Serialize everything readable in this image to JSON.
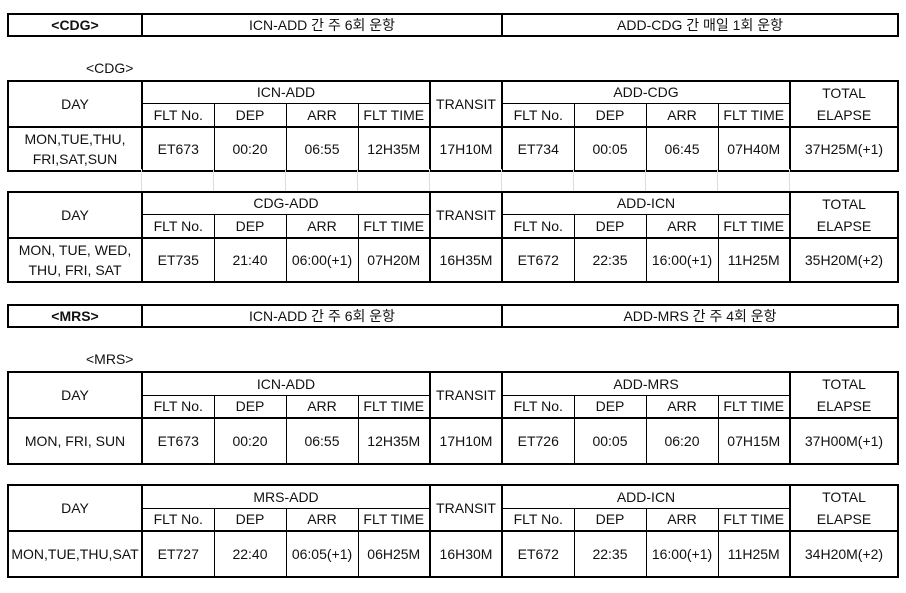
{
  "sections": [
    {
      "title": "<CDG>",
      "out_note": "ICN-ADD 간 주 6회 운항",
      "in_note": "ADD-CDG 간 매일 1회 운항",
      "label": "<CDG>",
      "tables": [
        {
          "day_header": "DAY",
          "leg1": "ICN-ADD",
          "transit_header": "TRANSIT",
          "leg2": "ADD-CDG",
          "total_header": [
            "TOTAL",
            "ELAPSE"
          ],
          "sub": [
            "FLT No.",
            "DEP",
            "ARR",
            "FLT TIME"
          ],
          "row": {
            "day": [
              "MON,TUE,THU,",
              "FRI,SAT,SUN"
            ],
            "leg1": [
              "ET673",
              "00:20",
              "06:55",
              "12H35M"
            ],
            "transit": "17H10M",
            "leg2": [
              "ET734",
              "00:05",
              "06:45",
              "07H40M"
            ],
            "total": "37H25M(+1)"
          }
        },
        {
          "day_header": "DAY",
          "leg1": "CDG-ADD",
          "transit_header": "TRANSIT",
          "leg2": "ADD-ICN",
          "total_header": [
            "TOTAL",
            "ELAPSE"
          ],
          "sub": [
            "FLT No.",
            "DEP",
            "ARR",
            "FLT TIME"
          ],
          "row": {
            "day": [
              "MON, TUE, WED,",
              "THU, FRI, SAT"
            ],
            "leg1": [
              "ET735",
              "21:40",
              "06:00(+1)",
              "07H20M"
            ],
            "transit": "16H35M",
            "leg2": [
              "ET672",
              "22:35",
              "16:00(+1)",
              "11H25M"
            ],
            "total": "35H20M(+2)"
          }
        }
      ]
    },
    {
      "title": "<MRS>",
      "out_note": "ICN-ADD 간 주 6회 운항",
      "in_note": "ADD-MRS 간 주 4회 운항",
      "label": "<MRS>",
      "tables": [
        {
          "day_header": "DAY",
          "leg1": "ICN-ADD",
          "transit_header": "TRANSIT",
          "leg2": "ADD-MRS",
          "total_header": [
            "TOTAL",
            "ELAPSE"
          ],
          "sub": [
            "FLT No.",
            "DEP",
            "ARR",
            "FLT TIME"
          ],
          "row": {
            "day": [
              "MON, FRI, SUN"
            ],
            "leg1": [
              "ET673",
              "00:20",
              "06:55",
              "12H35M"
            ],
            "transit": "17H10M",
            "leg2": [
              "ET726",
              "00:05",
              "06:20",
              "07H15M"
            ],
            "total": "37H00M(+1)"
          }
        },
        {
          "day_header": "DAY",
          "leg1": "MRS-ADD",
          "transit_header": "TRANSIT",
          "leg2": "ADD-ICN",
          "total_header": [
            "TOTAL",
            "ELAPSE"
          ],
          "sub": [
            "FLT No.",
            "DEP",
            "ARR",
            "FLT TIME"
          ],
          "row": {
            "day": [
              "MON,TUE,THU,SAT"
            ],
            "leg1": [
              "ET727",
              "22:40",
              "06:05(+1)",
              "06H25M"
            ],
            "transit": "16H30M",
            "leg2": [
              "ET672",
              "22:35",
              "16:00(+1)",
              "11H25M"
            ],
            "total": "34H20M(+2)"
          }
        }
      ]
    }
  ]
}
